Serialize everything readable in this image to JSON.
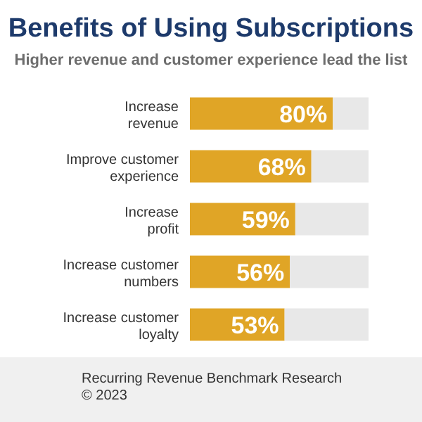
{
  "chart_data": {
    "type": "bar",
    "orientation": "horizontal",
    "stacked": true,
    "title": "Benefits of Using Subscriptions",
    "subtitle": "Higher revenue and customer experience lead the list",
    "categories": [
      "Increase revenue",
      "Improve customer experience",
      "Increase profit",
      "Increase customer numbers",
      "Increase customer loyalty"
    ],
    "series": [
      {
        "color": "#e0a526",
        "values": [
          80,
          68,
          59,
          56,
          53
        ],
        "value_labels": [
          "80%",
          "68%",
          "59%",
          "56%",
          "53%"
        ]
      },
      {
        "color": "#e8e8e8",
        "values": [
          20,
          32,
          41,
          44,
          47
        ]
      }
    ],
    "xlim": [
      0,
      100
    ],
    "annotations": [
      "Recurring Revenue Benchmark Research",
      "© 2023"
    ]
  }
}
